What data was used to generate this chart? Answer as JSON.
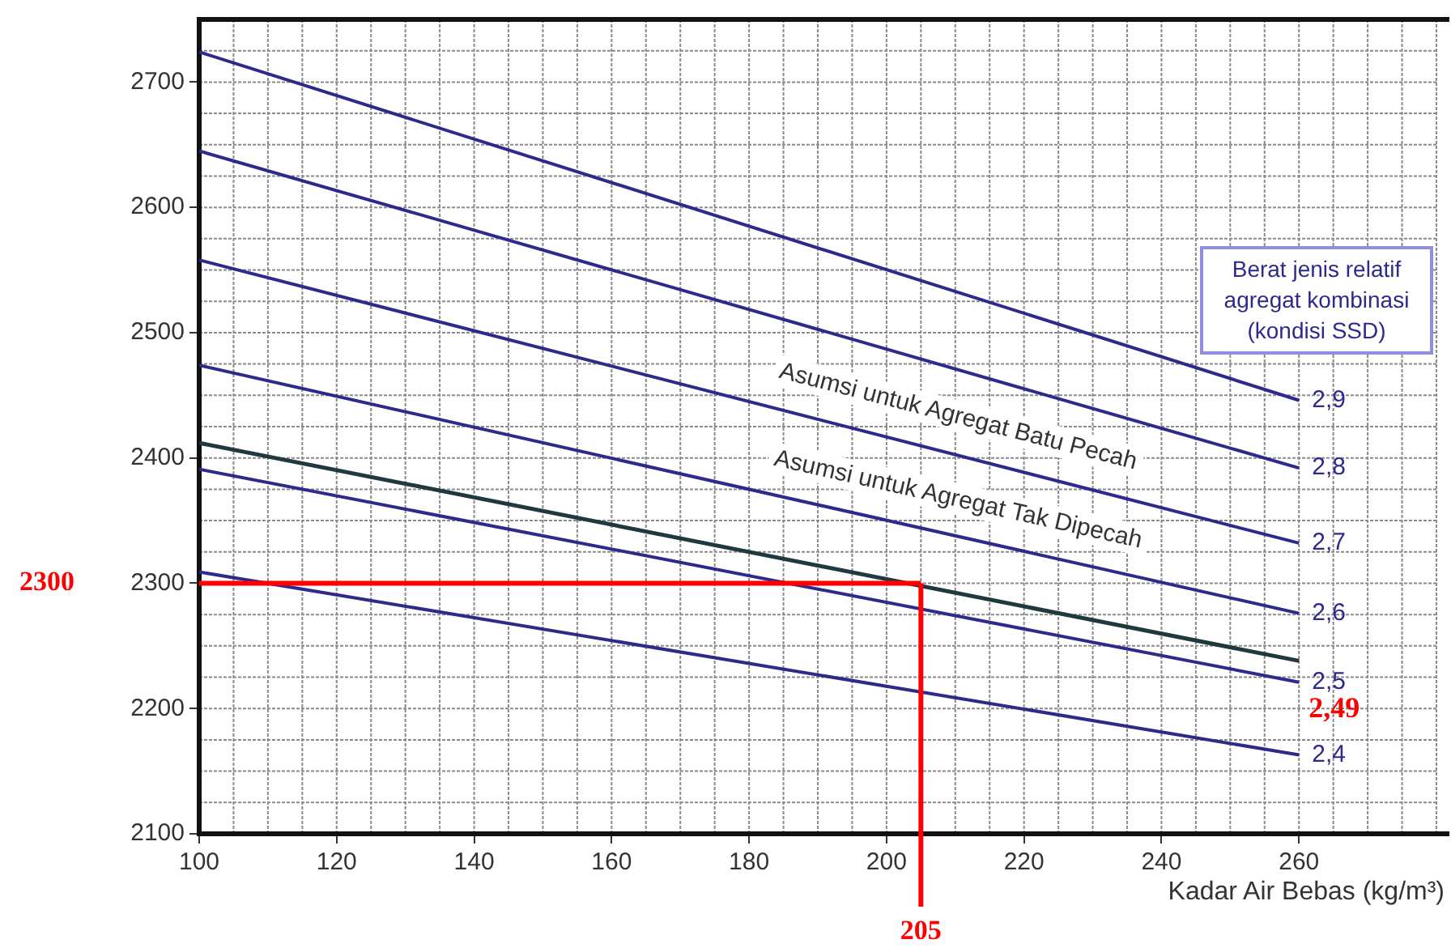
{
  "chart_data": {
    "type": "line",
    "xlabel": "Kadar Air Bebas (kg/m³)",
    "legend_title": "Berat jenis relatif agregat kombinasi (kondisi SSD)",
    "x": [
      100,
      260
    ],
    "series": [
      {
        "name": "2,9",
        "color": "#2e2a8c",
        "values": [
          2724,
          2446
        ]
      },
      {
        "name": "2,8",
        "color": "#2e2a8c",
        "values": [
          2645,
          2392
        ]
      },
      {
        "name": "2,7",
        "color": "#2e2a8c",
        "values": [
          2558,
          2332
        ]
      },
      {
        "name": "2,6",
        "color": "#2e2a8c",
        "values": [
          2474,
          2276
        ]
      },
      {
        "color": "#1e3a40",
        "values": [
          2412,
          2238
        ]
      },
      {
        "name": "2,5",
        "color": "#2e2a8c",
        "values": [
          2391,
          2221
        ]
      },
      {
        "name": "2,4",
        "color": "#2e2a8c",
        "values": [
          2309,
          2163
        ]
      }
    ],
    "xlim": [
      100,
      280
    ],
    "xticks": [
      100,
      120,
      140,
      160,
      180,
      200,
      220,
      240,
      260
    ],
    "ylim": [
      2100,
      2750
    ],
    "yticks": [
      2100,
      2200,
      2300,
      2400,
      2500,
      2600,
      2700
    ],
    "grid": true,
    "legend": false,
    "marker": "none",
    "line_style": "solid",
    "ref_lines": [
      {
        "axis": "y",
        "value": 2300,
        "label": "2300",
        "color": "#ff0000"
      },
      {
        "axis": "x",
        "value": 205,
        "label": "205",
        "color": "#ff0000"
      }
    ],
    "annotations": [
      "Asumsi untuk Agregat Batu Pecah",
      "Asumsi untuk Agregat Tak Dipecah",
      {
        "text": "2,49",
        "x": 260,
        "y": 2238
      }
    ]
  }
}
